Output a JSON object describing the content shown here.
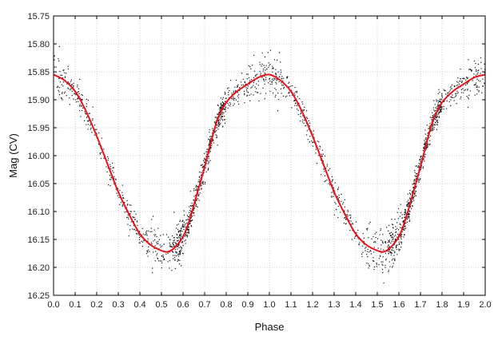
{
  "chart_data": {
    "type": "scatter",
    "xlabel": "Phase",
    "ylabel": "Mag (CV)",
    "xlim": [
      0.0,
      2.0
    ],
    "ylim": [
      15.75,
      16.25
    ],
    "y_inverted": true,
    "grid": true,
    "x_ticks": [
      "0.0",
      "0.1",
      "0.2",
      "0.3",
      "0.4",
      "0.5",
      "0.6",
      "0.7",
      "0.8",
      "0.9",
      "1.0",
      "1.1",
      "1.2",
      "1.3",
      "1.4",
      "1.5",
      "1.6",
      "1.7",
      "1.8",
      "1.9",
      "2.0"
    ],
    "y_ticks": [
      "15.75",
      "15.80",
      "15.85",
      "15.90",
      "15.95",
      "16.00",
      "16.05",
      "16.10",
      "16.15",
      "16.20",
      "16.25"
    ],
    "series": [
      {
        "kind": "points",
        "color": "#111111",
        "scatter_sigma_mag": 0.012,
        "points_per_cycle": 1100
      },
      {
        "kind": "fit-curve",
        "color": "#e8141b",
        "x": [
          0.0,
          0.05,
          0.1,
          0.15,
          0.2,
          0.25,
          0.3,
          0.35,
          0.4,
          0.45,
          0.5,
          0.53,
          0.56,
          0.6,
          0.63,
          0.66,
          0.7,
          0.73,
          0.76,
          0.8,
          0.85,
          0.9,
          0.95,
          1.0,
          1.05,
          1.1,
          1.15,
          1.2,
          1.25,
          1.3,
          1.35,
          1.4,
          1.45,
          1.5,
          1.53,
          1.56,
          1.6,
          1.63,
          1.66,
          1.7,
          1.73,
          1.76,
          1.8,
          1.85,
          1.9,
          1.95,
          2.0
        ],
        "y": [
          15.855,
          15.865,
          15.885,
          15.92,
          15.965,
          16.015,
          16.065,
          16.105,
          16.14,
          16.16,
          16.17,
          16.172,
          16.165,
          16.145,
          16.115,
          16.075,
          16.02,
          15.975,
          15.935,
          15.905,
          15.885,
          15.872,
          15.86,
          15.855,
          15.865,
          15.885,
          15.92,
          15.965,
          16.015,
          16.065,
          16.105,
          16.14,
          16.16,
          16.17,
          16.172,
          16.165,
          16.145,
          16.115,
          16.075,
          16.02,
          15.975,
          15.935,
          15.905,
          15.885,
          15.872,
          15.86,
          15.855
        ]
      }
    ]
  }
}
